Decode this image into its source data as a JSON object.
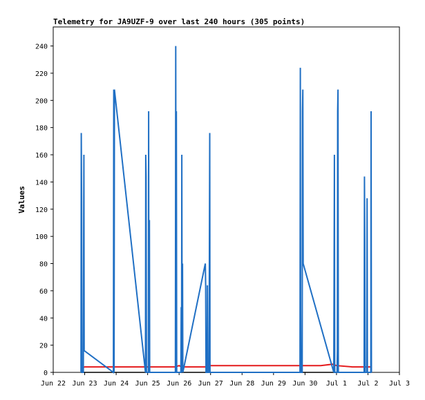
{
  "chart_data": {
    "type": "line",
    "title": "Telemetry for JA9UZF-9 over last 240 hours (305 points)",
    "xlabel": "",
    "ylabel": "Values",
    "xlim": [
      "2022-06-22",
      "2022-07-03"
    ],
    "ylim": [
      0,
      254
    ],
    "x_ticks": [
      "Jun 22",
      "Jun 23",
      "Jun 24",
      "Jun 25",
      "Jun 26",
      "Jun 27",
      "Jun 28",
      "Jun 29",
      "Jun 30",
      "Jul 1",
      "Jul 2",
      "Jul 3"
    ],
    "y_ticks": [
      0,
      20,
      40,
      60,
      80,
      100,
      120,
      140,
      160,
      180,
      200,
      220,
      240
    ],
    "grid": false,
    "legend": "none",
    "series": [
      {
        "color": "#1f6fc4",
        "points": [
          [
            "2022-06-22T21:10",
            0
          ],
          [
            "2022-06-22T21:25",
            176
          ],
          [
            "2022-06-22T21:40",
            128
          ],
          [
            "2022-06-22T21:55",
            0
          ],
          [
            "2022-06-22T23:00",
            0
          ],
          [
            "2022-06-22T23:15",
            112
          ],
          [
            "2022-06-22T23:25",
            160
          ],
          [
            "2022-06-22T23:35",
            16
          ],
          [
            "2022-06-23T21:55",
            0
          ],
          [
            "2022-06-23T22:10",
            208
          ],
          [
            "2022-06-23T22:25",
            0
          ],
          [
            "2022-06-23T22:40",
            208
          ],
          [
            "2022-06-24T22:20",
            0
          ],
          [
            "2022-06-24T22:35",
            160
          ],
          [
            "2022-06-24T22:50",
            144
          ],
          [
            "2022-06-24T23:05",
            0
          ],
          [
            "2022-06-25T00:30",
            0
          ],
          [
            "2022-06-25T00:45",
            192
          ],
          [
            "2022-06-25T01:00",
            0
          ],
          [
            "2022-06-25T01:20",
            112
          ],
          [
            "2022-06-25T01:35",
            0
          ],
          [
            "2022-06-25T21:10",
            0
          ],
          [
            "2022-06-25T21:25",
            240
          ],
          [
            "2022-06-25T21:40",
            48
          ],
          [
            "2022-06-25T21:55",
            192
          ],
          [
            "2022-06-25T22:10",
            0
          ],
          [
            "2022-06-26T01:20",
            0
          ],
          [
            "2022-06-26T01:35",
            48
          ],
          [
            "2022-06-26T01:50",
            0
          ],
          [
            "2022-06-26T02:05",
            160
          ],
          [
            "2022-06-26T02:20",
            0
          ],
          [
            "2022-06-26T02:35",
            80
          ],
          [
            "2022-06-26T02:50",
            0
          ],
          [
            "2022-06-26T20:00",
            80
          ],
          [
            "2022-06-26T20:15",
            64
          ],
          [
            "2022-06-26T20:30",
            0
          ],
          [
            "2022-06-26T21:20",
            0
          ],
          [
            "2022-06-26T21:35",
            64
          ],
          [
            "2022-06-26T21:50",
            0
          ],
          [
            "2022-06-26T22:50",
            0
          ],
          [
            "2022-06-26T23:05",
            88
          ],
          [
            "2022-06-26T23:20",
            176
          ],
          [
            "2022-06-26T23:35",
            0
          ],
          [
            "2022-06-29T20:10",
            0
          ],
          [
            "2022-06-29T20:25",
            224
          ],
          [
            "2022-06-29T20:40",
            48
          ],
          [
            "2022-06-29T20:55",
            0
          ],
          [
            "2022-06-29T21:50",
            0
          ],
          [
            "2022-06-29T22:05",
            192
          ],
          [
            "2022-06-29T22:20",
            208
          ],
          [
            "2022-06-29T22:35",
            80
          ],
          [
            "2022-06-30T21:55",
            0
          ],
          [
            "2022-06-30T22:10",
            64
          ],
          [
            "2022-06-30T22:25",
            160
          ],
          [
            "2022-06-30T22:40",
            0
          ],
          [
            "2022-07-01T00:25",
            0
          ],
          [
            "2022-07-01T00:40",
            16
          ],
          [
            "2022-07-01T00:55",
            192
          ],
          [
            "2022-07-01T01:10",
            208
          ],
          [
            "2022-07-01T01:25",
            0
          ],
          [
            "2022-07-01T21:05",
            0
          ],
          [
            "2022-07-01T21:20",
            144
          ],
          [
            "2022-07-01T21:35",
            96
          ],
          [
            "2022-07-01T21:50",
            0
          ],
          [
            "2022-07-01T23:05",
            0
          ],
          [
            "2022-07-01T23:20",
            128
          ],
          [
            "2022-07-01T23:35",
            0
          ],
          [
            "2022-07-02T02:10",
            0
          ],
          [
            "2022-07-02T02:25",
            192
          ],
          [
            "2022-07-02T02:40",
            0
          ]
        ]
      },
      {
        "color": "#e41a1c",
        "points": [
          [
            "2022-06-22T21:10",
            3
          ],
          [
            "2022-06-23T00:00",
            4
          ],
          [
            "2022-06-24T00:00",
            4
          ],
          [
            "2022-06-25T00:00",
            4
          ],
          [
            "2022-06-25T21:00",
            4
          ],
          [
            "2022-06-26T00:00",
            5
          ],
          [
            "2022-06-26T02:00",
            4
          ],
          [
            "2022-06-26T21:00",
            4
          ],
          [
            "2022-06-27T00:00",
            5
          ],
          [
            "2022-06-28T00:00",
            5
          ],
          [
            "2022-06-28T12:00",
            5
          ],
          [
            "2022-06-29T00:00",
            5
          ],
          [
            "2022-06-29T21:00",
            5
          ],
          [
            "2022-06-30T00:00",
            5
          ],
          [
            "2022-06-30T12:00",
            5
          ],
          [
            "2022-06-30T21:00",
            6
          ],
          [
            "2022-07-01T00:00",
            5
          ],
          [
            "2022-07-01T12:00",
            4
          ],
          [
            "2022-07-02T02:40",
            4
          ]
        ]
      },
      {
        "color": "#000000",
        "points": [
          [
            "2022-06-22T21:10",
            0
          ],
          [
            "2022-07-02T02:40",
            0
          ]
        ]
      }
    ]
  }
}
